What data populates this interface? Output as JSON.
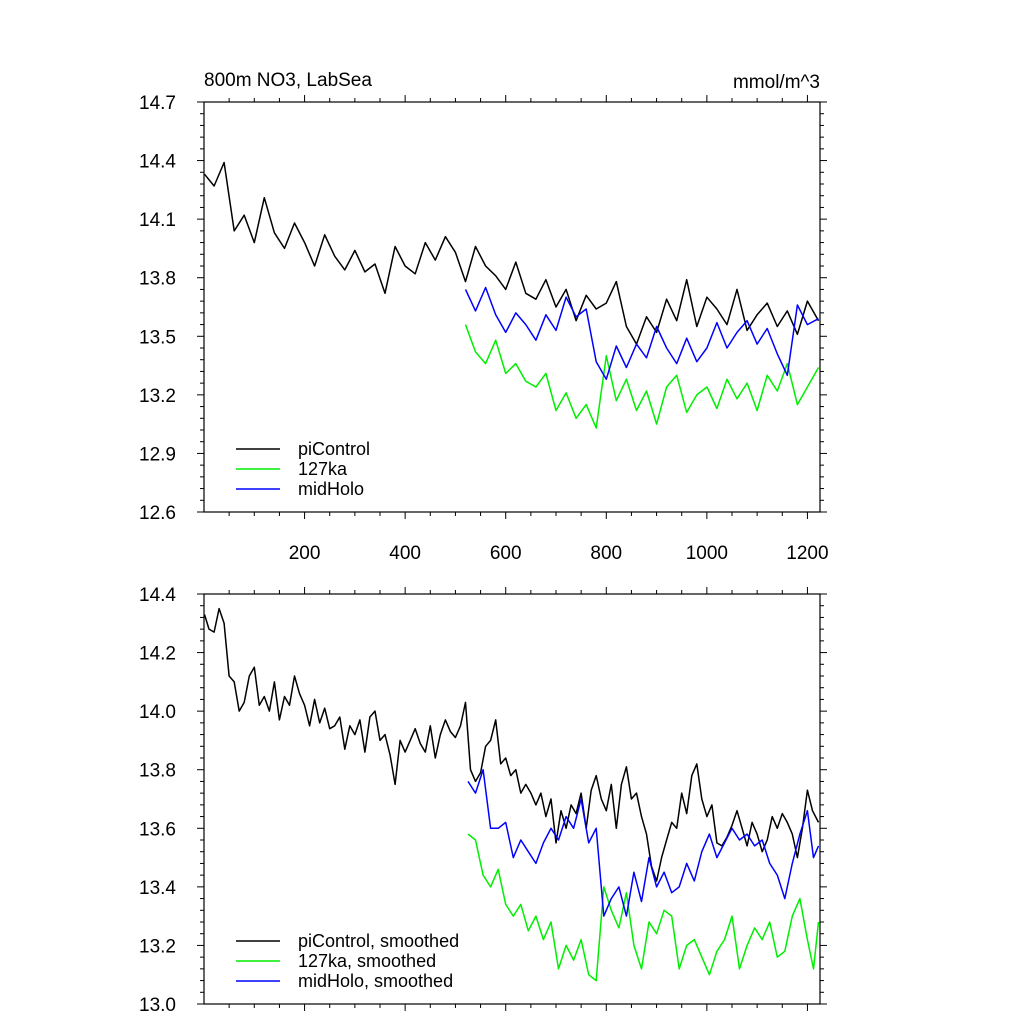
{
  "chart_data": [
    {
      "type": "line",
      "title_left": "800m NO3, LabSea",
      "title_right": "mmol/m^3",
      "xlim": [
        0,
        1225
      ],
      "ylim": [
        12.6,
        14.7
      ],
      "yticks": [
        "12.6",
        "12.9",
        "13.2",
        "13.5",
        "13.8",
        "14.1",
        "14.4",
        "14.7"
      ],
      "xticks": [
        "200",
        "400",
        "600",
        "800",
        "1000",
        "1200"
      ],
      "legend_position": "bottom-left",
      "series": [
        {
          "name": "piControl",
          "color": "#000000",
          "x": [
            1,
            20,
            40,
            60,
            80,
            100,
            120,
            140,
            160,
            180,
            200,
            220,
            240,
            260,
            280,
            300,
            320,
            340,
            360,
            380,
            400,
            420,
            440,
            460,
            480,
            500,
            520,
            540,
            560,
            580,
            600,
            620,
            640,
            660,
            680,
            700,
            720,
            740,
            760,
            780,
            800,
            820,
            840,
            860,
            880,
            900,
            920,
            940,
            960,
            980,
            1000,
            1020,
            1040,
            1060,
            1080,
            1100,
            1120,
            1140,
            1160,
            1180,
            1200,
            1222
          ],
          "y": [
            14.33,
            14.27,
            14.39,
            14.04,
            14.12,
            13.98,
            14.21,
            14.03,
            13.95,
            14.08,
            13.98,
            13.86,
            14.02,
            13.91,
            13.84,
            13.94,
            13.83,
            13.87,
            13.72,
            13.96,
            13.86,
            13.82,
            13.98,
            13.89,
            14.01,
            13.93,
            13.78,
            13.96,
            13.86,
            13.81,
            13.74,
            13.88,
            13.72,
            13.69,
            13.79,
            13.65,
            13.74,
            13.58,
            13.71,
            13.64,
            13.67,
            13.78,
            13.55,
            13.46,
            13.6,
            13.52,
            13.69,
            13.58,
            13.79,
            13.55,
            13.7,
            13.64,
            13.56,
            13.74,
            13.53,
            13.61,
            13.67,
            13.55,
            13.63,
            13.51,
            13.68,
            13.58
          ]
        },
        {
          "name": "127ka",
          "color": "#00ee00",
          "x": [
            520,
            540,
            560,
            580,
            600,
            620,
            640,
            660,
            680,
            700,
            720,
            740,
            760,
            780,
            800,
            820,
            840,
            860,
            880,
            900,
            920,
            940,
            960,
            980,
            1000,
            1020,
            1040,
            1060,
            1080,
            1100,
            1120,
            1140,
            1160,
            1180,
            1200,
            1222
          ],
          "y": [
            13.56,
            13.42,
            13.36,
            13.48,
            13.31,
            13.36,
            13.27,
            13.24,
            13.31,
            13.12,
            13.21,
            13.08,
            13.15,
            13.03,
            13.4,
            13.17,
            13.28,
            13.12,
            13.22,
            13.05,
            13.24,
            13.3,
            13.11,
            13.2,
            13.24,
            13.13,
            13.28,
            13.18,
            13.26,
            13.12,
            13.3,
            13.22,
            13.36,
            13.15,
            13.24,
            13.34
          ]
        },
        {
          "name": "midHolo",
          "color": "#0000ff",
          "x": [
            520,
            540,
            560,
            580,
            600,
            620,
            640,
            660,
            680,
            700,
            720,
            740,
            760,
            780,
            800,
            820,
            840,
            860,
            880,
            900,
            920,
            940,
            960,
            980,
            1000,
            1020,
            1040,
            1060,
            1080,
            1100,
            1120,
            1140,
            1160,
            1180,
            1200,
            1222
          ],
          "y": [
            13.74,
            13.63,
            13.75,
            13.61,
            13.52,
            13.62,
            13.56,
            13.48,
            13.61,
            13.53,
            13.7,
            13.6,
            13.64,
            13.37,
            13.28,
            13.45,
            13.34,
            13.46,
            13.39,
            13.55,
            13.44,
            13.36,
            13.49,
            13.37,
            13.44,
            13.57,
            13.44,
            13.52,
            13.58,
            13.46,
            13.54,
            13.41,
            13.3,
            13.66,
            13.56,
            13.59
          ]
        }
      ]
    },
    {
      "type": "line",
      "xlim": [
        0,
        1225
      ],
      "ylim": [
        13.0,
        14.4
      ],
      "yticks": [
        "13.0",
        "13.2",
        "13.4",
        "13.6",
        "13.8",
        "14.0",
        "14.2",
        "14.4"
      ],
      "legend_position": "bottom-left",
      "series": [
        {
          "name": "piControl, smoothed",
          "color": "#000000",
          "x": [
            1,
            10,
            20,
            30,
            40,
            50,
            60,
            70,
            80,
            90,
            100,
            110,
            120,
            130,
            140,
            150,
            160,
            170,
            180,
            190,
            200,
            210,
            220,
            230,
            240,
            250,
            260,
            270,
            280,
            290,
            300,
            310,
            320,
            330,
            340,
            350,
            360,
            370,
            380,
            390,
            400,
            410,
            420,
            430,
            440,
            450,
            460,
            470,
            480,
            490,
            500,
            510,
            520,
            530,
            540,
            550,
            560,
            570,
            580,
            590,
            600,
            610,
            620,
            630,
            640,
            650,
            660,
            670,
            680,
            690,
            700,
            710,
            720,
            730,
            740,
            750,
            760,
            770,
            780,
            790,
            800,
            810,
            820,
            830,
            840,
            850,
            860,
            870,
            880,
            890,
            900,
            910,
            920,
            930,
            940,
            950,
            960,
            970,
            980,
            990,
            1000,
            1010,
            1020,
            1030,
            1040,
            1050,
            1060,
            1070,
            1080,
            1090,
            1100,
            1110,
            1120,
            1130,
            1140,
            1150,
            1160,
            1170,
            1180,
            1190,
            1200,
            1210,
            1222
          ],
          "y": [
            14.33,
            14.28,
            14.27,
            14.35,
            14.3,
            14.12,
            14.1,
            14.0,
            14.03,
            14.12,
            14.15,
            14.02,
            14.05,
            14.0,
            14.1,
            13.97,
            14.05,
            14.02,
            14.12,
            14.06,
            14.02,
            13.95,
            14.04,
            13.96,
            14.01,
            13.94,
            13.95,
            13.98,
            13.87,
            13.95,
            13.92,
            13.97,
            13.86,
            13.98,
            14.0,
            13.9,
            13.92,
            13.85,
            13.75,
            13.9,
            13.86,
            13.9,
            13.94,
            13.89,
            13.86,
            13.95,
            13.84,
            13.92,
            13.97,
            13.93,
            13.91,
            13.95,
            14.03,
            13.8,
            13.76,
            13.79,
            13.88,
            13.9,
            13.97,
            13.82,
            13.84,
            13.78,
            13.8,
            13.72,
            13.75,
            13.72,
            13.68,
            13.72,
            13.64,
            13.7,
            13.55,
            13.66,
            13.6,
            13.68,
            13.65,
            13.72,
            13.6,
            13.73,
            13.78,
            13.7,
            13.66,
            13.75,
            13.6,
            13.75,
            13.81,
            13.7,
            13.72,
            13.64,
            13.58,
            13.47,
            13.42,
            13.5,
            13.56,
            13.62,
            13.6,
            13.72,
            13.65,
            13.78,
            13.82,
            13.7,
            13.64,
            13.68,
            13.55,
            13.54,
            13.57,
            13.61,
            13.66,
            13.6,
            13.54,
            13.62,
            13.58,
            13.52,
            13.56,
            13.64,
            13.6,
            13.65,
            13.62,
            13.58,
            13.5,
            13.6,
            13.73,
            13.66,
            13.62
          ]
        },
        {
          "name": "127ka, smoothed",
          "color": "#00ee00",
          "x": [
            525,
            540,
            555,
            570,
            585,
            600,
            615,
            630,
            645,
            660,
            675,
            690,
            705,
            720,
            735,
            750,
            765,
            780,
            795,
            810,
            825,
            840,
            855,
            870,
            885,
            900,
            915,
            930,
            945,
            960,
            975,
            990,
            1005,
            1020,
            1035,
            1050,
            1065,
            1080,
            1095,
            1110,
            1125,
            1140,
            1155,
            1170,
            1185,
            1200,
            1212,
            1222
          ],
          "y": [
            13.58,
            13.56,
            13.44,
            13.4,
            13.46,
            13.34,
            13.3,
            13.34,
            13.25,
            13.3,
            13.22,
            13.28,
            13.12,
            13.2,
            13.15,
            13.22,
            13.1,
            13.08,
            13.4,
            13.32,
            13.26,
            13.38,
            13.2,
            13.12,
            13.28,
            13.24,
            13.32,
            13.3,
            13.12,
            13.2,
            13.22,
            13.16,
            13.1,
            13.18,
            13.22,
            13.3,
            13.12,
            13.2,
            13.26,
            13.22,
            13.28,
            13.16,
            13.18,
            13.3,
            13.36,
            13.22,
            13.12,
            13.28
          ]
        },
        {
          "name": "midHolo, smoothed",
          "color": "#0000ff",
          "x": [
            525,
            540,
            555,
            570,
            585,
            600,
            615,
            630,
            645,
            660,
            675,
            690,
            705,
            720,
            735,
            750,
            765,
            780,
            795,
            810,
            825,
            840,
            855,
            870,
            885,
            900,
            915,
            930,
            945,
            960,
            975,
            990,
            1005,
            1020,
            1035,
            1050,
            1065,
            1080,
            1095,
            1110,
            1125,
            1140,
            1155,
            1170,
            1185,
            1200,
            1212,
            1222
          ],
          "y": [
            13.76,
            13.72,
            13.8,
            13.6,
            13.6,
            13.62,
            13.5,
            13.56,
            13.52,
            13.48,
            13.55,
            13.6,
            13.56,
            13.64,
            13.6,
            13.7,
            13.55,
            13.6,
            13.3,
            13.36,
            13.4,
            13.3,
            13.45,
            13.35,
            13.5,
            13.4,
            13.45,
            13.38,
            13.4,
            13.48,
            13.42,
            13.52,
            13.58,
            13.5,
            13.55,
            13.6,
            13.56,
            13.58,
            13.54,
            13.56,
            13.48,
            13.44,
            13.36,
            13.48,
            13.58,
            13.66,
            13.5,
            13.54
          ]
        }
      ]
    }
  ]
}
